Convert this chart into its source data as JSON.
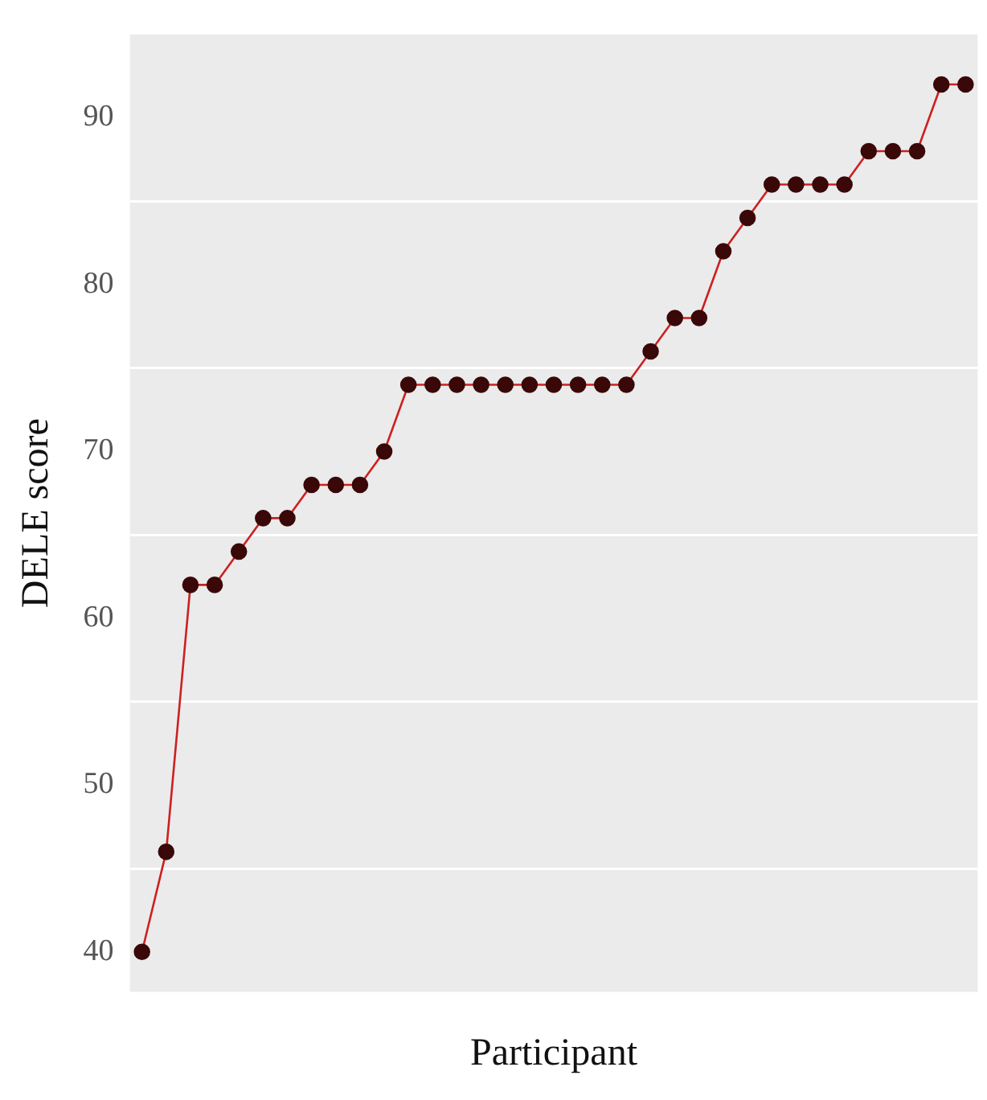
{
  "chart_data": {
    "type": "line",
    "xlabel": "Participant",
    "ylabel": "DELE score",
    "categories": [
      null,
      null,
      null,
      null,
      null,
      null,
      null,
      null,
      null,
      null,
      null,
      null,
      null,
      null,
      null,
      null,
      null,
      null,
      null,
      null,
      null,
      null,
      null,
      null,
      null,
      null,
      null,
      null,
      null,
      null,
      null,
      null,
      null,
      null,
      null
    ],
    "series": [
      {
        "color": "#cc2020",
        "values": [
          40,
          46,
          62,
          62,
          64,
          66,
          66,
          68,
          68,
          68,
          70,
          74,
          74,
          74,
          74,
          74,
          74,
          74,
          74,
          74,
          74,
          76,
          78,
          78,
          82,
          84,
          86,
          86,
          86,
          86,
          88,
          88,
          88,
          92,
          92
        ]
      }
    ],
    "ylim": [
      37.6,
      95
    ],
    "yticks": [
      40,
      {
        "value": 45,
        "label": null
      },
      50,
      {
        "value": 55,
        "label": null
      },
      60,
      {
        "value": 65,
        "label": null
      },
      70,
      {
        "value": 75,
        "label": null
      },
      80,
      {
        "value": 85,
        "label": null
      },
      90
    ],
    "grid": "y",
    "legend": false,
    "marker": "circle",
    "line_style": "solid"
  }
}
